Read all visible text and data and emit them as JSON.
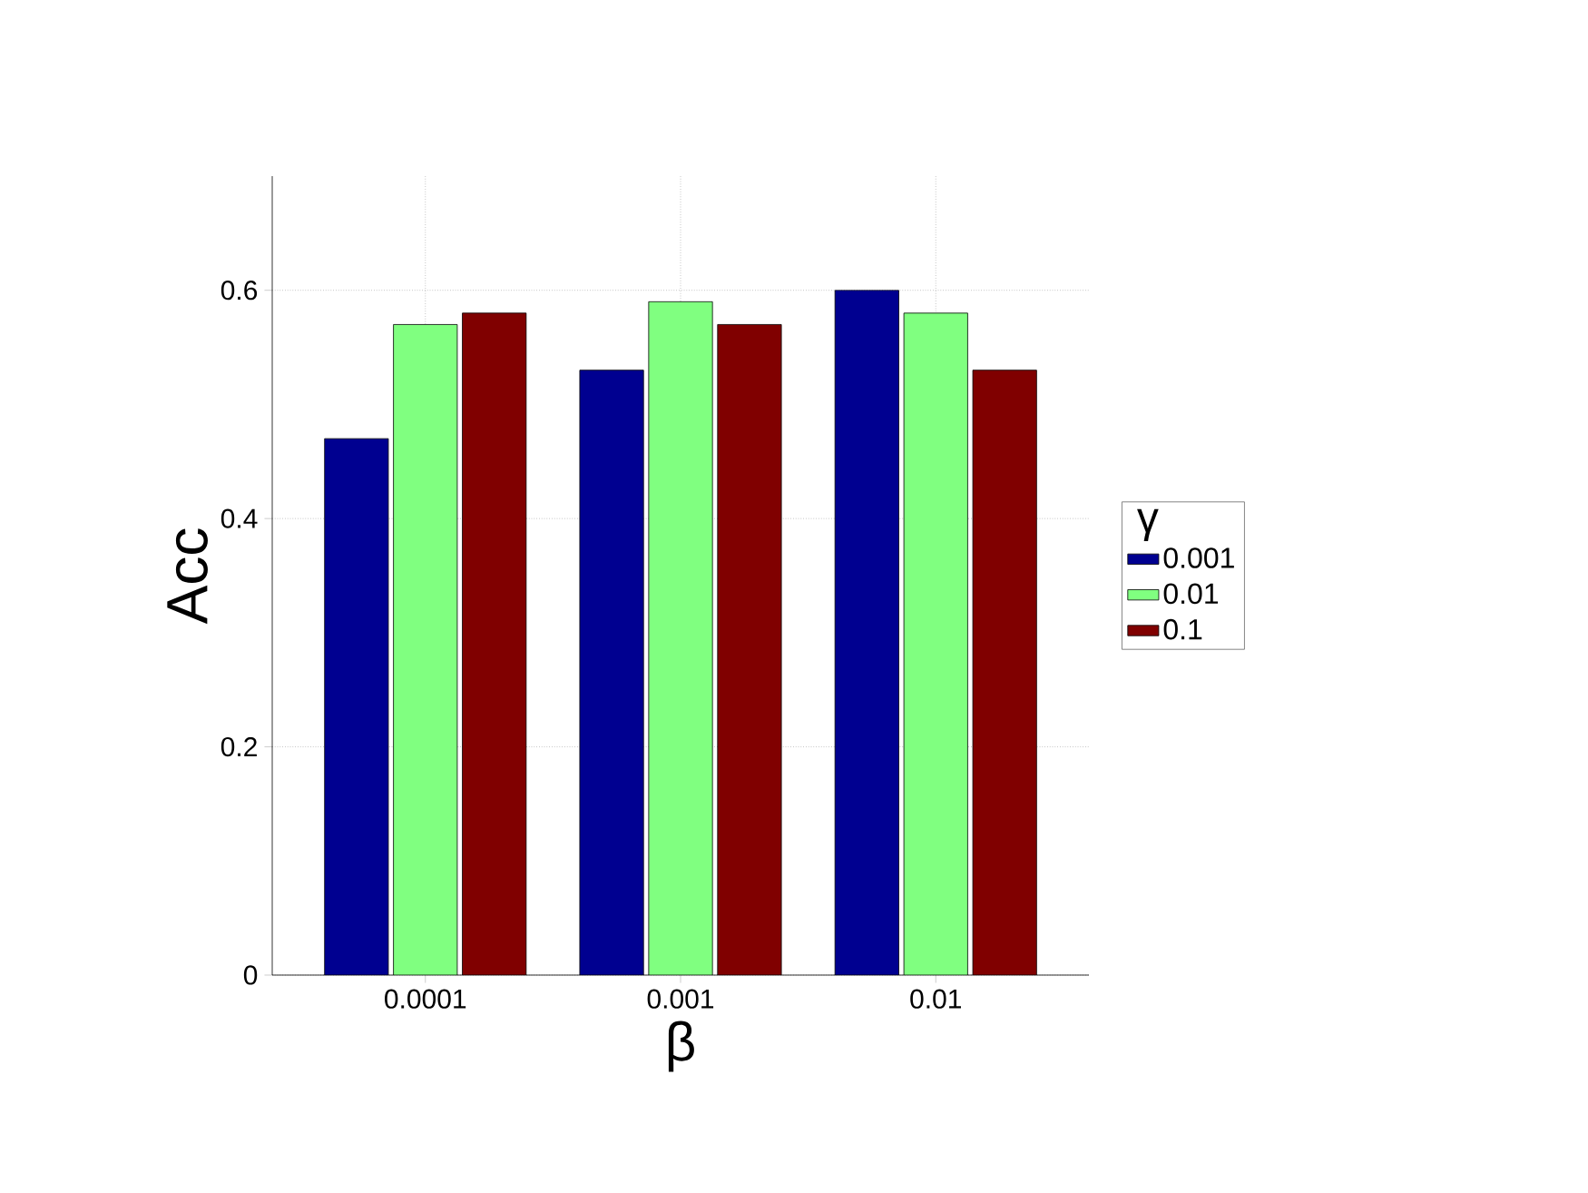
{
  "chart_data": {
    "type": "bar",
    "xlabel": "β",
    "ylabel": "Acc",
    "legend_title": "γ",
    "categories": [
      "0.0001",
      "0.001",
      "0.01"
    ],
    "series": [
      {
        "name": "0.001",
        "color": "#000090",
        "values": [
          0.47,
          0.53,
          0.6
        ]
      },
      {
        "name": "0.01",
        "color": "#80ff80",
        "values": [
          0.57,
          0.59,
          0.58
        ]
      },
      {
        "name": "0.1",
        "color": "#800000",
        "values": [
          0.58,
          0.57,
          0.53
        ]
      }
    ],
    "ylim": [
      0,
      0.7
    ],
    "yticks": [
      0,
      0.2,
      0.4,
      0.6
    ],
    "grid": true,
    "legend": "right"
  }
}
